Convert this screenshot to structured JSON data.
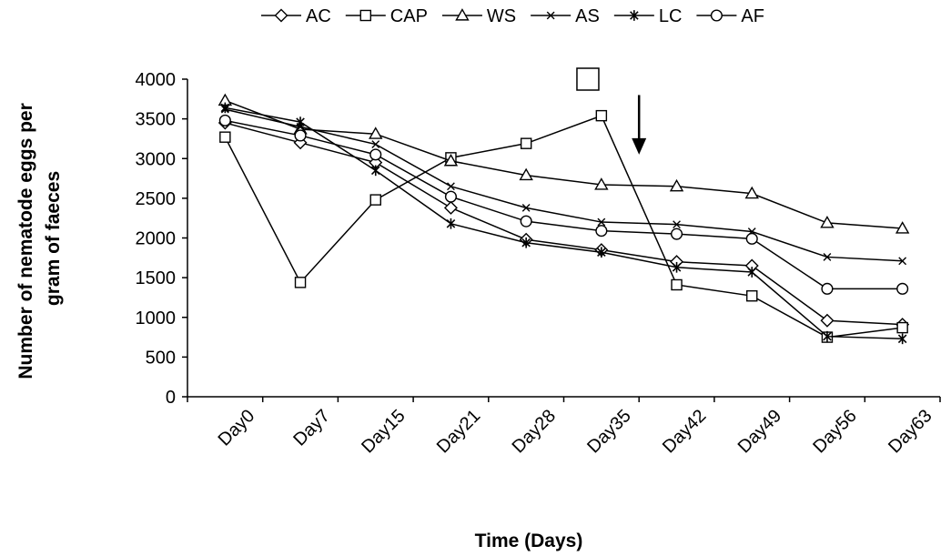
{
  "chart_data": {
    "type": "line",
    "title": "",
    "xlabel": "Time (Days)",
    "ylabel_lines": [
      "Number of nematode eggs per",
      "gram of faeces"
    ],
    "categories": [
      "Day0",
      "Day7",
      "Day15",
      "Day21",
      "Day28",
      "Day35",
      "Day42",
      "Day49",
      "Day56",
      "Day63"
    ],
    "ylim": [
      0,
      4000
    ],
    "yticks": [
      0,
      500,
      1000,
      1500,
      2000,
      2500,
      3000,
      3500,
      4000
    ],
    "grid": false,
    "legend_position": "top",
    "line_color": "#000000",
    "annotations": [
      {
        "type": "marker",
        "shape": "square",
        "category": "Day35",
        "y": 4000
      },
      {
        "type": "arrow",
        "direction": "down",
        "category": "Day42",
        "y_from": 3800,
        "y_to": 3050
      }
    ],
    "series": [
      {
        "name": "AC",
        "marker": "diamond",
        "values": [
          3450,
          3200,
          2950,
          2380,
          1980,
          1850,
          1700,
          1650,
          960,
          910
        ]
      },
      {
        "name": "CAP",
        "marker": "square",
        "values": [
          3270,
          1440,
          2480,
          3010,
          3190,
          3540,
          1410,
          1270,
          750,
          870
        ]
      },
      {
        "name": "WS",
        "marker": "triangle",
        "values": [
          3730,
          3370,
          3310,
          2970,
          2790,
          2670,
          2650,
          2560,
          2190,
          2120
        ]
      },
      {
        "name": "AS",
        "marker": "x",
        "values": [
          3620,
          3400,
          3180,
          2650,
          2380,
          2200,
          2170,
          2080,
          1760,
          1710
        ]
      },
      {
        "name": "LC",
        "marker": "star",
        "values": [
          3640,
          3460,
          2850,
          2180,
          1940,
          1820,
          1630,
          1570,
          760,
          730
        ]
      },
      {
        "name": "AF",
        "marker": "circle",
        "values": [
          3480,
          3290,
          3050,
          2520,
          2210,
          2090,
          2050,
          1990,
          1360,
          1360
        ]
      }
    ]
  }
}
